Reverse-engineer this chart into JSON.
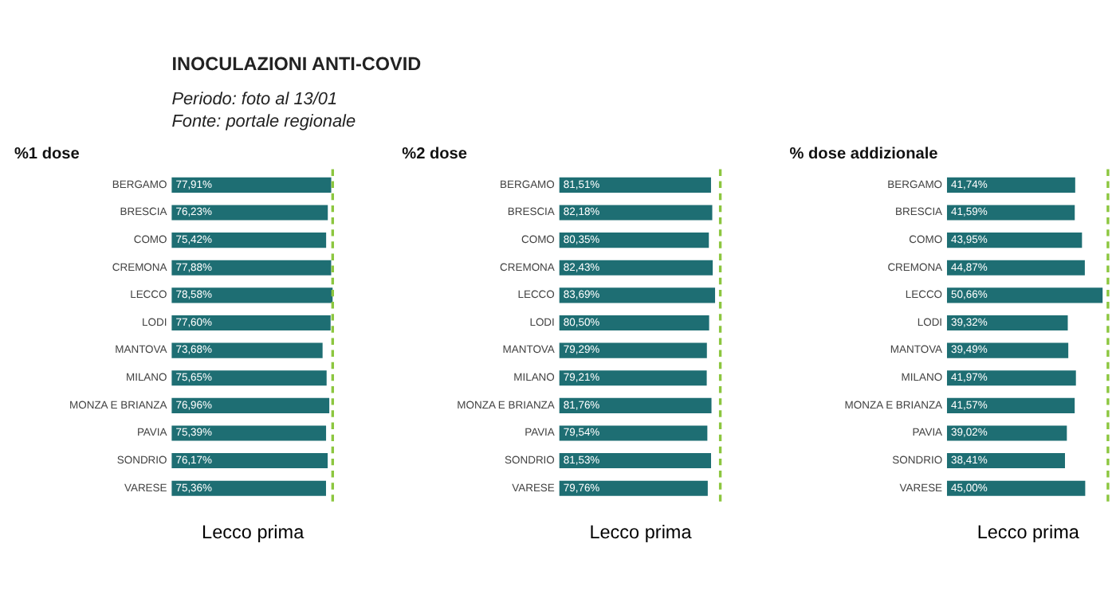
{
  "chart_data": [
    {
      "type": "other",
      "title": "INOCULAZIONI ANTI-COVID",
      "annotations": [
        "Periodo: foto al 13/01",
        "Fonte: portale regionale"
      ]
    },
    {
      "type": "bar",
      "orientation": "horizontal",
      "title": "%1 dose",
      "xlabel": "Lecco prima",
      "tick_labels": "y",
      "grid": false,
      "categories": [
        "BERGAMO",
        "BRESCIA",
        "COMO",
        "CREMONA",
        "LECCO",
        "LODI",
        "MANTOVA",
        "MILANO",
        "MONZA E BRIANZA",
        "PAVIA",
        "SONDRIO",
        "VARESE"
      ],
      "values": [
        77.91,
        76.23,
        75.42,
        77.88,
        78.58,
        77.6,
        73.68,
        75.65,
        76.96,
        75.39,
        76.17,
        75.36
      ],
      "value_labels": [
        "77,91%",
        "76,23%",
        "75,42%",
        "77,88%",
        "78,58%",
        "77,60%",
        "73,68%",
        "75,65%",
        "76,96%",
        "75,39%",
        "76,17%",
        "75,36%"
      ],
      "color": "#1e6e73",
      "ref_lines": [
        {
          "axis": "x",
          "value": 78.6,
          "color": "#8cc63f",
          "line_style": "dashed"
        }
      ]
    },
    {
      "type": "bar",
      "orientation": "horizontal",
      "title": "%2 dose",
      "xlabel": "Lecco prima",
      "tick_labels": "y",
      "grid": false,
      "categories": [
        "BERGAMO",
        "BRESCIA",
        "COMO",
        "CREMONA",
        "LECCO",
        "LODI",
        "MANTOVA",
        "MILANO",
        "MONZA E BRIANZA",
        "PAVIA",
        "SONDRIO",
        "VARESE"
      ],
      "values": [
        81.51,
        82.18,
        80.35,
        82.43,
        83.69,
        80.5,
        79.29,
        79.21,
        81.76,
        79.54,
        81.53,
        79.76
      ],
      "value_labels": [
        "81,51%",
        "82,18%",
        "80,35%",
        "82,43%",
        "83,69%",
        "80,50%",
        "79,29%",
        "79,21%",
        "81,76%",
        "79,54%",
        "81,53%",
        "79,76%"
      ],
      "color": "#1e6e73",
      "ref_lines": [
        {
          "axis": "x",
          "value": 86.5,
          "color": "#8cc63f",
          "line_style": "dashed"
        }
      ]
    },
    {
      "type": "bar",
      "orientation": "horizontal",
      "title": "% dose addizionale",
      "xlabel": "Lecco prima",
      "tick_labels": "y",
      "grid": false,
      "categories": [
        "BERGAMO",
        "BRESCIA",
        "COMO",
        "CREMONA",
        "LECCO",
        "LODI",
        "MANTOVA",
        "MILANO",
        "MONZA E BRIANZA",
        "PAVIA",
        "SONDRIO",
        "VARESE"
      ],
      "values": [
        41.74,
        41.59,
        43.95,
        44.87,
        50.66,
        39.32,
        39.49,
        41.97,
        41.57,
        39.02,
        38.41,
        45.0
      ],
      "value_labels": [
        "41,74%",
        "41,59%",
        "43,95%",
        "44,87%",
        "50,66%",
        "39,32%",
        "39,49%",
        "41,97%",
        "41,57%",
        "39,02%",
        "38,41%",
        "45,00%"
      ],
      "color": "#1e6e73",
      "ref_lines": [
        {
          "axis": "x",
          "value": 52.4,
          "color": "#8cc63f",
          "line_style": "dashed"
        }
      ]
    }
  ]
}
